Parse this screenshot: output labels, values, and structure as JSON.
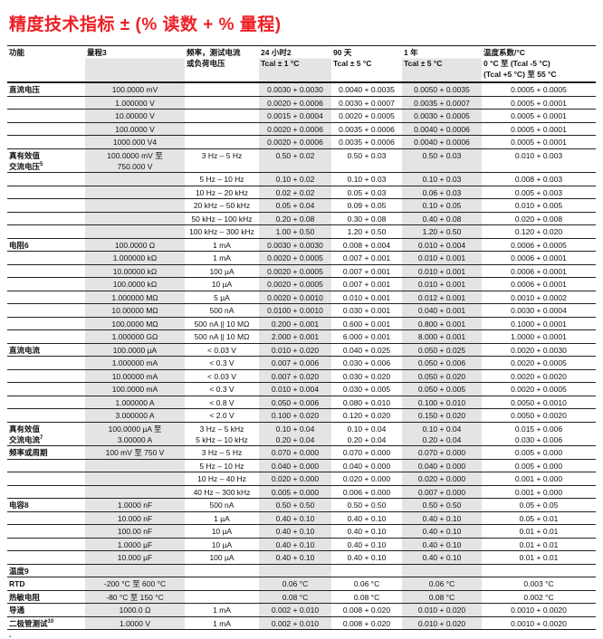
{
  "title": "精度技术指标 ± (% 读数 + % 量程)",
  "footnote_mark": ".",
  "colors": {
    "title_red": "#ee2024",
    "shade_gray": "#e4e4e4",
    "border_black": "#1a1a1a"
  },
  "table": {
    "columns": [
      {
        "id": "function",
        "label": "功能",
        "sub": [],
        "shaded": false,
        "width": 86,
        "align": "left"
      },
      {
        "id": "range",
        "label": "量程3",
        "sub": [],
        "shaded": true,
        "width": 110,
        "align": "center"
      },
      {
        "id": "freq-current",
        "label": "频率，测试电流",
        "sub": [
          "或负荷电压"
        ],
        "shaded": false,
        "width": 82,
        "align": "center"
      },
      {
        "id": "24h",
        "label": "24 小时2",
        "sub": [
          "Tcal ± 1 °C"
        ],
        "shaded": true,
        "width": 80,
        "align": "center"
      },
      {
        "id": "90day",
        "label": "90 天",
        "sub": [
          "Tcal ± 5 °C"
        ],
        "shaded": false,
        "width": 78,
        "align": "center"
      },
      {
        "id": "1year",
        "label": "1 年",
        "sub": [
          "Tcal ± 5 °C"
        ],
        "shaded": true,
        "width": 88,
        "align": "center"
      },
      {
        "id": "tempco",
        "label": "温度系数/°C",
        "sub": [
          "0 °C 至 (Tcal -5 °C)",
          "(Tcal +5 °C) 至 55 °C"
        ],
        "shaded": false,
        "width": 126,
        "align": "center"
      }
    ],
    "rows": [
      {
        "sec": true,
        "fn": "直流电压",
        "sup": "",
        "cells": [
          "100.0000 mV",
          "",
          "0.0030 + 0.0030",
          "0.0040 + 0.0035",
          "0.0050 + 0.0035",
          "0.0005 + 0.0005"
        ]
      },
      {
        "sec": false,
        "fn": "",
        "sup": "",
        "cells": [
          "1.000000 V",
          "",
          "0.0020 + 0.0006",
          "0.0030 + 0.0007",
          "0.0035 + 0.0007",
          "0.0005 + 0.0001"
        ]
      },
      {
        "sec": false,
        "fn": "",
        "sup": "",
        "cells": [
          "10.00000 V",
          "",
          "0.0015 + 0.0004",
          "0.0020 + 0.0005",
          "0.0030 + 0.0005",
          "0.0005 + 0.0001"
        ]
      },
      {
        "sec": false,
        "fn": "",
        "sup": "",
        "cells": [
          "100.0000 V",
          "",
          "0.0020 + 0.0006",
          "0.0035 + 0.0006",
          "0.0040 + 0.0006",
          "0.0005 + 0.0001"
        ]
      },
      {
        "sec": false,
        "fn": "",
        "sup": "",
        "cells": [
          "1000.000 V4",
          "",
          "0.0020 + 0.0006",
          "0.0035 + 0.0006",
          "0.0040 + 0.0006",
          "0.0005 + 0.0001"
        ]
      },
      {
        "sec": true,
        "fn": "真有效值\n交流电压",
        "sup": "5",
        "cells": [
          "100.0000 mV 至\n750.000 V",
          "3 Hz – 5 Hz",
          "0.50 + 0.02",
          "0.50 + 0.03",
          "0.50 + 0.03",
          "0.010 + 0.003"
        ]
      },
      {
        "sec": false,
        "fn": "",
        "sup": "",
        "cells": [
          "",
          "5 Hz – 10 Hz",
          "0.10 + 0.02",
          "0.10 + 0.03",
          "0.10 + 0.03",
          "0.008 + 0.003"
        ]
      },
      {
        "sec": false,
        "fn": "",
        "sup": "",
        "cells": [
          "",
          "10 Hz – 20 kHz",
          "0.02 + 0.02",
          "0.05 + 0.03",
          "0.06 + 0.03",
          "0.005 + 0.003"
        ]
      },
      {
        "sec": false,
        "fn": "",
        "sup": "",
        "cells": [
          "",
          "20 kHz – 50 kHz",
          "0.05 + 0.04",
          "0.09 + 0.05",
          "0.10 + 0.05",
          "0.010 + 0.005"
        ]
      },
      {
        "sec": false,
        "fn": "",
        "sup": "",
        "cells": [
          "",
          "50 kHz – 100 kHz",
          "0.20 + 0.08",
          "0.30 + 0.08",
          "0.40 + 0.08",
          "0.020 + 0.008"
        ]
      },
      {
        "sec": false,
        "fn": "",
        "sup": "",
        "cells": [
          "",
          "100 kHz – 300 kHz",
          "1.00 + 0.50",
          "1.20 + 0.50",
          "1.20 + 0.50",
          "0.120 + 0.020"
        ]
      },
      {
        "sec": true,
        "fn": "电阻6",
        "sup": "",
        "cells": [
          "100.0000 Ω",
          "1 mA",
          "0.0030 + 0.0030",
          "0.008 + 0.004",
          "0.010 + 0.004",
          "0.0006 + 0.0005"
        ]
      },
      {
        "sec": false,
        "fn": "",
        "sup": "",
        "cells": [
          "1.000000 kΩ",
          "1 mA",
          "0.0020 + 0.0005",
          "0.007 + 0.001",
          "0.010 + 0.001",
          "0.0006 + 0.0001"
        ]
      },
      {
        "sec": false,
        "fn": "",
        "sup": "",
        "cells": [
          "10.00000 kΩ",
          "100 µA",
          "0.0020 + 0.0005",
          "0.007 + 0.001",
          "0.010 + 0.001",
          "0.0006 + 0.0001"
        ]
      },
      {
        "sec": false,
        "fn": "",
        "sup": "",
        "cells": [
          "100.0000 kΩ",
          "10 µA",
          "0.0020 + 0.0005",
          "0.007 + 0.001",
          "0.010 + 0.001",
          "0.0006 + 0.0001"
        ]
      },
      {
        "sec": false,
        "fn": "",
        "sup": "",
        "cells": [
          "1.000000 MΩ",
          "5 µA",
          "0.0020 + 0.0010",
          "0.010 + 0.001",
          "0.012 + 0.001",
          "0.0010 + 0.0002"
        ]
      },
      {
        "sec": false,
        "fn": "",
        "sup": "",
        "cells": [
          "10.00000 MΩ",
          "500 nA",
          "0.0100 + 0.0010",
          "0.030 + 0.001",
          "0.040 + 0.001",
          "0.0030 + 0.0004"
        ]
      },
      {
        "sec": false,
        "fn": "",
        "sup": "",
        "cells": [
          "100.0000 MΩ",
          "500 nA || 10 MΩ",
          "0.200 + 0.001",
          "0.600 + 0.001",
          "0.800 + 0.001",
          "0.1000 + 0.0001"
        ]
      },
      {
        "sec": false,
        "fn": "",
        "sup": "",
        "cells": [
          "1.000000 GΩ",
          "500 nA || 10 MΩ",
          "2.000 + 0.001",
          "6.000 + 0.001",
          "8.000 + 0.001",
          "1.0000 + 0.0001"
        ]
      },
      {
        "sec": true,
        "fn": "直流电流",
        "sup": "",
        "cells": [
          "100.0000 µA",
          "< 0.03 V",
          "0.010 + 0.020",
          "0.040 + 0.025",
          "0.050 + 0.025",
          "0.0020 + 0.0030"
        ]
      },
      {
        "sec": false,
        "fn": "",
        "sup": "",
        "cells": [
          "1.000000 mA",
          "< 0.3 V",
          "0.007 + 0.006",
          "0.030 + 0.006",
          "0.050 + 0.006",
          "0.0020 + 0.0005"
        ]
      },
      {
        "sec": false,
        "fn": "",
        "sup": "",
        "cells": [
          "10.00000 mA",
          "< 0.03 V",
          "0.007 + 0.020",
          "0.030 + 0.020",
          "0.050 + 0.020",
          "0.0020 + 0.0020"
        ]
      },
      {
        "sec": false,
        "fn": "",
        "sup": "",
        "cells": [
          "100.0000 mA",
          "< 0.3 V",
          "0.010 + 0.004",
          "0.030 + 0.005",
          "0.050 + 0.005",
          "0.0020 + 0.0005"
        ]
      },
      {
        "sec": false,
        "fn": "",
        "sup": "",
        "cells": [
          "1.000000 A",
          "< 0.8 V",
          "0.050 + 0.006",
          "0.080 + 0.010",
          "0.100 + 0.010",
          "0.0050 + 0.0010"
        ]
      },
      {
        "sec": false,
        "fn": "",
        "sup": "",
        "cells": [
          "3.000000 A",
          "< 2.0 V",
          "0.100 + 0.020",
          "0.120 + 0.020",
          "0.150 + 0.020",
          "0.0050 + 0.0020"
        ]
      },
      {
        "sec": true,
        "fn": "真有效值\n交流电流",
        "sup": "7",
        "cells": [
          "100.0000 µA 至\n3.00000 A",
          "3 Hz – 5 kHz\n5 kHz – 10 kHz",
          "0.10 + 0.04\n0.20 + 0.04",
          "0.10 + 0.04\n0.20 + 0.04",
          "0.10 + 0.04\n0.20 + 0.04",
          "0.015 + 0.006\n0.030 + 0.006"
        ]
      },
      {
        "sec": true,
        "fn": "频率或周期",
        "sup": "",
        "cells": [
          "100 mV 至 750 V",
          "3 Hz – 5 Hz",
          "0.070 + 0.000",
          "0.070 + 0.000",
          "0.070 + 0.000",
          "0.005 + 0.000"
        ]
      },
      {
        "sec": false,
        "fn": "",
        "sup": "",
        "cells": [
          "",
          "5 Hz – 10 Hz",
          "0.040 + 0.000",
          "0.040 + 0.000",
          "0.040 + 0.000",
          "0.005 + 0.000"
        ]
      },
      {
        "sec": false,
        "fn": "",
        "sup": "",
        "cells": [
          "",
          "10 Hz – 40 Hz",
          "0.020 + 0.000",
          "0.020 + 0.000",
          "0.020 + 0.000",
          "0.001 + 0.000"
        ]
      },
      {
        "sec": false,
        "fn": "",
        "sup": "",
        "cells": [
          "",
          "40 Hz – 300 kHz",
          "0.005 + 0.000",
          "0.006 + 0.000",
          "0.007 + 0.000",
          "0.001 + 0.000"
        ]
      },
      {
        "sec": true,
        "fn": "电容8",
        "sup": "",
        "cells": [
          "1.0000 nF",
          "500 nA",
          "0.50 + 0.50",
          "0.50 + 0.50",
          "0.50 + 0.50",
          "0.05 + 0.05"
        ]
      },
      {
        "sec": false,
        "fn": "",
        "sup": "",
        "cells": [
          "10.000 nF",
          "1 µA",
          "0.40 + 0.10",
          "0.40 + 0.10",
          "0.40 + 0.10",
          "0.05 + 0.01"
        ]
      },
      {
        "sec": false,
        "fn": "",
        "sup": "",
        "cells": [
          "100.00 nF",
          "10 µA",
          "0.40 + 0.10",
          "0.40 + 0.10",
          "0.40 + 0.10",
          "0.01 + 0.01"
        ]
      },
      {
        "sec": false,
        "fn": "",
        "sup": "",
        "cells": [
          "1.0000 µF",
          "10 µA",
          "0.40 + 0.10",
          "0.40 + 0.10",
          "0.40 + 0.10",
          "0.01 + 0.01"
        ]
      },
      {
        "sec": false,
        "fn": "",
        "sup": "",
        "cells": [
          "10.000 µF",
          "100 µA",
          "0.40 + 0.10",
          "0.40 + 0.10",
          "0.40 + 0.10",
          "0.01 + 0.01"
        ]
      },
      {
        "sec": true,
        "fn": "温度9",
        "sup": "",
        "cells": [
          "",
          "",
          "",
          "",
          "",
          ""
        ]
      },
      {
        "sec": false,
        "fn": "RTD",
        "sup": "",
        "cells": [
          "-200 °C 至 600 °C",
          "",
          "0.06 °C",
          "0.06 °C",
          "0.06 °C",
          "0.003 °C"
        ]
      },
      {
        "sec": false,
        "fn": "热敏电阻",
        "sup": "",
        "cells": [
          "-80 °C 至 150 °C",
          "",
          "0.08 °C",
          "0.08 °C",
          "0.08 °C",
          "0.002 °C"
        ]
      },
      {
        "sec": true,
        "fn": "导通",
        "sup": "",
        "cells": [
          "1000.0 Ω",
          "1 mA",
          "0.002 + 0.010",
          "0.008 + 0.020",
          "0.010 + 0.020",
          "0.0010 + 0.0020"
        ]
      },
      {
        "sec": true,
        "fn": "二极管测试",
        "sup": "10",
        "cells": [
          "1.0000 V",
          "1 mA",
          "0.002 + 0.010",
          "0.008 + 0.020",
          "0.010 + 0.020",
          "0.0010 + 0.0020"
        ]
      }
    ]
  }
}
